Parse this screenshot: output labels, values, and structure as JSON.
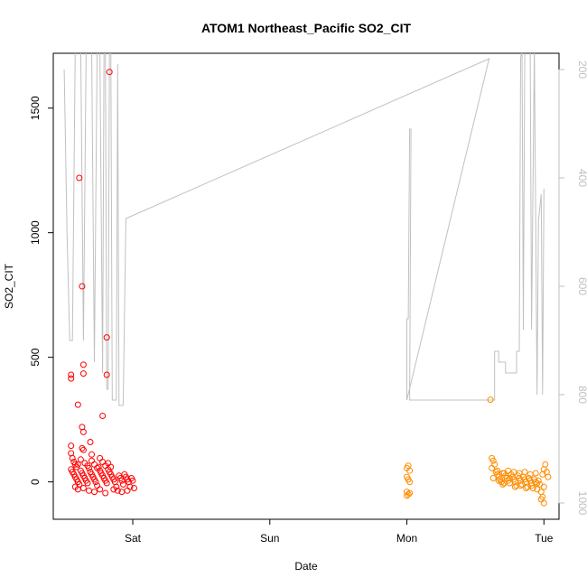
{
  "chart_data": {
    "type": "scatter",
    "title": "ATOM1 Northeast_Pacific SO2_CIT",
    "xlabel": "Date",
    "ylabel": "SO2_CIT",
    "x_ticks": [
      "Sat",
      "Sun",
      "Mon",
      "Tue"
    ],
    "x_tick_days": [
      1,
      2,
      3,
      4
    ],
    "xlim_days": [
      0.42,
      4.11
    ],
    "ylim": [
      -150,
      1720
    ],
    "y_ticks": [
      0,
      500,
      1000,
      1500
    ],
    "y2_label": "",
    "y2_ticks": [
      200,
      400,
      600,
      800,
      1000
    ],
    "y2lim_reversed": [
      1030,
      170
    ],
    "colors": {
      "series1": "#ff0000",
      "series2": "#ff8c00",
      "pressure_line": "#c0c0c0",
      "right_axis": "#bfbfbf"
    },
    "grid": false,
    "series": [
      {
        "color": "#ff0000",
        "points": [
          [
            0.55,
            430
          ],
          [
            0.55,
            415
          ],
          [
            0.61,
            1220
          ],
          [
            0.63,
            785
          ],
          [
            0.64,
            470
          ],
          [
            0.64,
            435
          ],
          [
            0.6,
            310
          ],
          [
            0.63,
            220
          ],
          [
            0.64,
            200
          ],
          [
            0.63,
            135
          ],
          [
            0.64,
            128
          ],
          [
            0.69,
            160
          ],
          [
            0.7,
            110
          ],
          [
            0.78,
            265
          ],
          [
            0.81,
            580
          ],
          [
            0.81,
            430
          ],
          [
            0.83,
            1645
          ],
          [
            0.55,
            145
          ],
          [
            0.55,
            115
          ],
          [
            0.56,
            95
          ],
          [
            0.57,
            80
          ],
          [
            0.58,
            70
          ],
          [
            0.59,
            60
          ],
          [
            0.55,
            50
          ],
          [
            0.56,
            40
          ],
          [
            0.57,
            30
          ],
          [
            0.58,
            20
          ],
          [
            0.59,
            10
          ],
          [
            0.6,
            0
          ],
          [
            0.61,
            -10
          ],
          [
            0.62,
            45
          ],
          [
            0.63,
            35
          ],
          [
            0.64,
            25
          ],
          [
            0.65,
            15
          ],
          [
            0.66,
            5
          ],
          [
            0.67,
            -5
          ],
          [
            0.68,
            55
          ],
          [
            0.69,
            40
          ],
          [
            0.7,
            30
          ],
          [
            0.71,
            20
          ],
          [
            0.72,
            10
          ],
          [
            0.73,
            0
          ],
          [
            0.74,
            -15
          ],
          [
            0.75,
            60
          ],
          [
            0.76,
            45
          ],
          [
            0.77,
            35
          ],
          [
            0.78,
            25
          ],
          [
            0.79,
            15
          ],
          [
            0.8,
            5
          ],
          [
            0.81,
            -5
          ],
          [
            0.82,
            50
          ],
          [
            0.83,
            40
          ],
          [
            0.84,
            30
          ],
          [
            0.85,
            20
          ],
          [
            0.86,
            10
          ],
          [
            0.87,
            0
          ],
          [
            0.88,
            -20
          ],
          [
            0.89,
            -35
          ],
          [
            0.9,
            25
          ],
          [
            0.91,
            15
          ],
          [
            0.92,
            5
          ],
          [
            0.93,
            -10
          ],
          [
            0.94,
            30
          ],
          [
            0.95,
            20
          ],
          [
            0.96,
            10
          ],
          [
            0.97,
            0
          ],
          [
            0.98,
            -20
          ],
          [
            0.99,
            15
          ],
          [
            1.0,
            5
          ],
          [
            1.01,
            -25
          ],
          [
            0.6,
            70
          ],
          [
            0.62,
            90
          ],
          [
            0.65,
            75
          ],
          [
            0.67,
            65
          ],
          [
            0.7,
            85
          ],
          [
            0.72,
            70
          ],
          [
            0.74,
            55
          ],
          [
            0.76,
            95
          ],
          [
            0.78,
            80
          ],
          [
            0.8,
            65
          ],
          [
            0.82,
            75
          ],
          [
            0.84,
            60
          ],
          [
            0.58,
            -20
          ],
          [
            0.6,
            -30
          ],
          [
            0.64,
            -25
          ],
          [
            0.68,
            -35
          ],
          [
            0.72,
            -40
          ],
          [
            0.76,
            -30
          ],
          [
            0.8,
            -45
          ],
          [
            0.86,
            -30
          ],
          [
            0.92,
            -40
          ],
          [
            0.96,
            -35
          ]
        ]
      },
      {
        "color": "#ff8c00",
        "points": [
          [
            3.0,
            55
          ],
          [
            3.01,
            65
          ],
          [
            3.02,
            45
          ],
          [
            3.0,
            20
          ],
          [
            3.01,
            10
          ],
          [
            3.0,
            -40
          ],
          [
            3.01,
            -50
          ],
          [
            3.02,
            -45
          ],
          [
            3.0,
            -55
          ],
          [
            3.02,
            0
          ],
          [
            3.61,
            330
          ],
          [
            3.62,
            95
          ],
          [
            3.63,
            85
          ],
          [
            3.64,
            70
          ],
          [
            3.62,
            55
          ],
          [
            3.65,
            40
          ],
          [
            3.66,
            30
          ],
          [
            3.67,
            20
          ],
          [
            3.68,
            10
          ],
          [
            3.69,
            0
          ],
          [
            3.7,
            -10
          ],
          [
            3.71,
            35
          ],
          [
            3.72,
            25
          ],
          [
            3.73,
            15
          ],
          [
            3.74,
            5
          ],
          [
            3.75,
            -5
          ],
          [
            3.76,
            30
          ],
          [
            3.77,
            20
          ],
          [
            3.78,
            10
          ],
          [
            3.79,
            0
          ],
          [
            3.8,
            -15
          ],
          [
            3.81,
            25
          ],
          [
            3.82,
            15
          ],
          [
            3.83,
            5
          ],
          [
            3.84,
            -10
          ],
          [
            3.85,
            20
          ],
          [
            3.86,
            10
          ],
          [
            3.87,
            0
          ],
          [
            3.88,
            -20
          ],
          [
            3.89,
            15
          ],
          [
            3.9,
            5
          ],
          [
            3.91,
            -5
          ],
          [
            3.92,
            -25
          ],
          [
            3.93,
            10
          ],
          [
            3.94,
            0
          ],
          [
            3.95,
            -30
          ],
          [
            3.96,
            5
          ],
          [
            3.97,
            -10
          ],
          [
            3.98,
            -40
          ],
          [
            3.99,
            30
          ],
          [
            4.0,
            50
          ],
          [
            4.01,
            70
          ],
          [
            4.0,
            -20
          ],
          [
            3.99,
            -60
          ],
          [
            3.98,
            -70
          ],
          [
            4.0,
            -85
          ],
          [
            4.02,
            40
          ],
          [
            4.03,
            20
          ],
          [
            3.66,
            45
          ],
          [
            3.7,
            35
          ],
          [
            3.74,
            45
          ],
          [
            3.78,
            40
          ],
          [
            3.82,
            35
          ],
          [
            3.86,
            40
          ],
          [
            3.9,
            30
          ],
          [
            3.94,
            35
          ],
          [
            3.63,
            15
          ],
          [
            3.67,
            5
          ],
          [
            3.71,
            -5
          ],
          [
            3.75,
            15
          ],
          [
            3.79,
            -20
          ],
          [
            3.83,
            -15
          ],
          [
            3.87,
            -25
          ],
          [
            3.91,
            -15
          ],
          [
            3.95,
            -5
          ]
        ]
      }
    ],
    "pressure_line": [
      [
        0.5,
        200
      ],
      [
        0.52,
        500
      ],
      [
        0.54,
        700
      ],
      [
        0.56,
        700
      ],
      [
        0.58,
        160
      ],
      [
        0.62,
        160
      ],
      [
        0.64,
        700
      ],
      [
        0.66,
        160
      ],
      [
        0.7,
        160
      ],
      [
        0.72,
        740
      ],
      [
        0.74,
        160
      ],
      [
        0.76,
        160
      ],
      [
        0.78,
        760
      ],
      [
        0.79,
        160
      ],
      [
        0.8,
        160
      ],
      [
        0.81,
        790
      ],
      [
        0.82,
        790
      ],
      [
        0.83,
        160
      ],
      [
        0.84,
        160
      ],
      [
        0.85,
        810
      ],
      [
        0.88,
        810
      ],
      [
        0.89,
        190
      ],
      [
        0.9,
        820
      ],
      [
        0.93,
        820
      ],
      [
        0.95,
        475
      ],
      [
        3.6,
        180
      ],
      [
        3.0,
        810
      ],
      [
        3.0,
        660
      ],
      [
        3.01,
        660
      ],
      [
        3.02,
        310
      ],
      [
        3.03,
        310
      ],
      [
        3.02,
        810
      ],
      [
        3.64,
        810
      ],
      [
        3.64,
        720
      ],
      [
        3.67,
        720
      ],
      [
        3.67,
        740
      ],
      [
        3.72,
        740
      ],
      [
        3.72,
        760
      ],
      [
        3.8,
        760
      ],
      [
        3.8,
        720
      ],
      [
        3.82,
        720
      ],
      [
        3.83,
        180
      ],
      [
        3.84,
        160
      ],
      [
        3.85,
        680
      ],
      [
        3.86,
        160
      ],
      [
        3.9,
        160
      ],
      [
        3.91,
        680
      ],
      [
        3.93,
        160
      ],
      [
        3.95,
        800
      ],
      [
        3.96,
        480
      ],
      [
        3.98,
        430
      ],
      [
        3.99,
        800
      ],
      [
        4.0,
        420
      ]
    ]
  }
}
